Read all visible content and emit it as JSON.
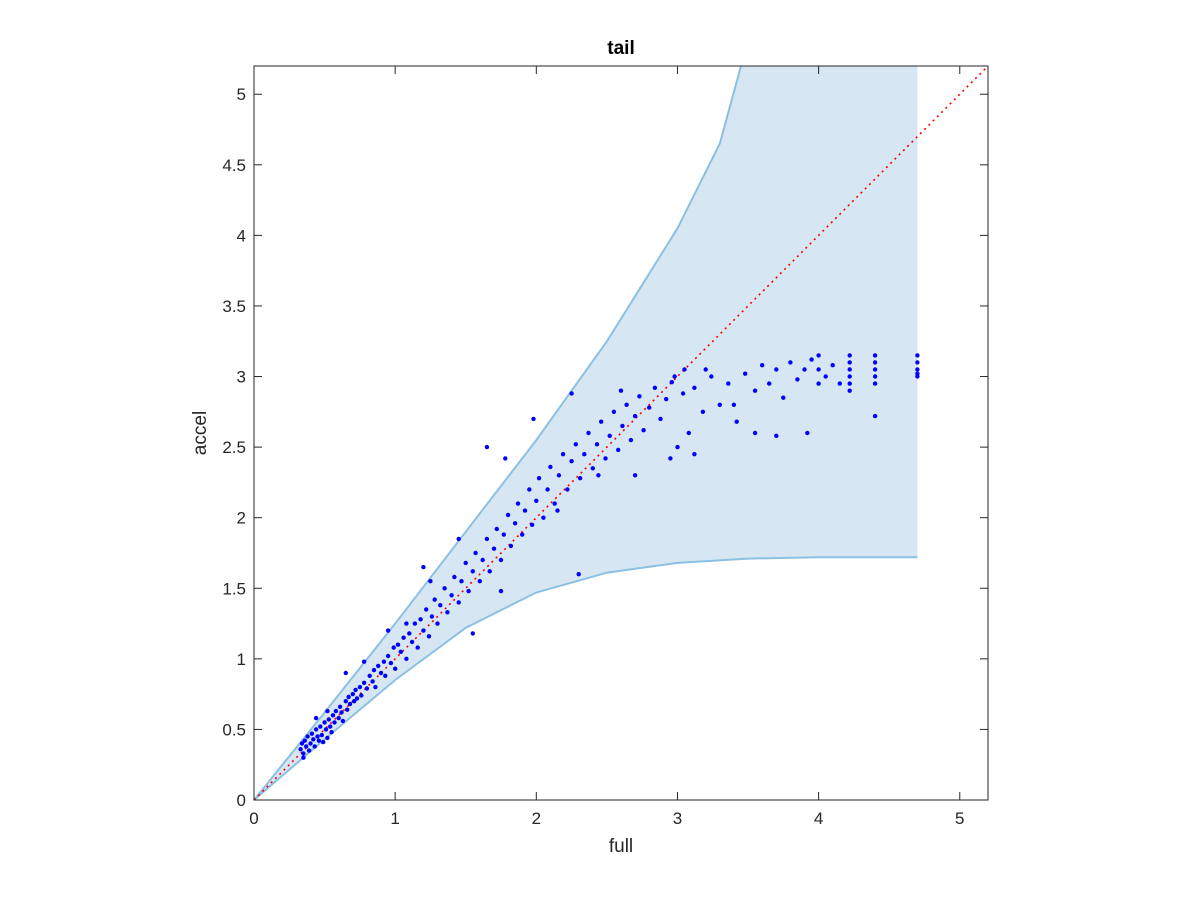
{
  "chart_data": {
    "type": "scatter",
    "title": "tail",
    "xlabel": "full",
    "ylabel": "accel",
    "xlim": [
      0,
      5.2
    ],
    "ylim": [
      0,
      5.2
    ],
    "xticks": [
      0,
      1,
      2,
      3,
      4,
      5
    ],
    "yticks": [
      0,
      0.5,
      1,
      1.5,
      2,
      2.5,
      3,
      3.5,
      4,
      4.5,
      5
    ],
    "grid": false,
    "colors": {
      "points": "#0000ff",
      "band_fill": "#d6e7f3",
      "band_edge": "#8cc0e2",
      "reference": "#ff0000"
    },
    "reference_line": {
      "style": "dotted",
      "from": [
        0,
        0
      ],
      "to": [
        5.2,
        5.2
      ]
    },
    "band": {
      "x_end": 4.7,
      "upper": [
        [
          0,
          0
        ],
        [
          0.5,
          0.62
        ],
        [
          1,
          1.25
        ],
        [
          1.5,
          1.9
        ],
        [
          2,
          2.55
        ],
        [
          2.5,
          3.25
        ],
        [
          3,
          4.05
        ],
        [
          3.3,
          4.65
        ],
        [
          3.45,
          5.2
        ],
        [
          4.7,
          5.2
        ]
      ],
      "lower": [
        [
          0,
          0
        ],
        [
          0.5,
          0.43
        ],
        [
          1,
          0.85
        ],
        [
          1.5,
          1.22
        ],
        [
          2,
          1.47
        ],
        [
          2.5,
          1.61
        ],
        [
          3,
          1.68
        ],
        [
          3.5,
          1.71
        ],
        [
          4,
          1.72
        ],
        [
          4.7,
          1.72
        ]
      ]
    },
    "series": [
      {
        "points": [
          [
            0.33,
            0.36
          ],
          [
            0.34,
            0.4
          ],
          [
            0.35,
            0.33
          ],
          [
            0.36,
            0.42
          ],
          [
            0.37,
            0.38
          ],
          [
            0.38,
            0.45
          ],
          [
            0.39,
            0.35
          ],
          [
            0.4,
            0.4
          ],
          [
            0.41,
            0.47
          ],
          [
            0.42,
            0.43
          ],
          [
            0.43,
            0.38
          ],
          [
            0.44,
            0.5
          ],
          [
            0.45,
            0.45
          ],
          [
            0.46,
            0.42
          ],
          [
            0.47,
            0.52
          ],
          [
            0.48,
            0.46
          ],
          [
            0.49,
            0.41
          ],
          [
            0.5,
            0.55
          ],
          [
            0.51,
            0.5
          ],
          [
            0.52,
            0.44
          ],
          [
            0.53,
            0.57
          ],
          [
            0.54,
            0.52
          ],
          [
            0.55,
            0.48
          ],
          [
            0.56,
            0.6
          ],
          [
            0.57,
            0.55
          ],
          [
            0.58,
            0.63
          ],
          [
            0.6,
            0.58
          ],
          [
            0.61,
            0.66
          ],
          [
            0.62,
            0.62
          ],
          [
            0.63,
            0.56
          ],
          [
            0.65,
            0.7
          ],
          [
            0.66,
            0.64
          ],
          [
            0.67,
            0.73
          ],
          [
            0.68,
            0.68
          ],
          [
            0.7,
            0.75
          ],
          [
            0.71,
            0.7
          ],
          [
            0.72,
            0.78
          ],
          [
            0.73,
            0.72
          ],
          [
            0.75,
            0.8
          ],
          [
            0.76,
            0.74
          ],
          [
            0.78,
            0.83
          ],
          [
            0.8,
            0.79
          ],
          [
            0.82,
            0.88
          ],
          [
            0.84,
            0.84
          ],
          [
            0.85,
            0.92
          ],
          [
            0.86,
            0.8
          ],
          [
            0.88,
            0.95
          ],
          [
            0.9,
            0.9
          ],
          [
            0.92,
            0.98
          ],
          [
            0.93,
            0.88
          ],
          [
            0.95,
            1.02
          ],
          [
            0.97,
            0.97
          ],
          [
            0.99,
            1.08
          ],
          [
            1.0,
            0.93
          ],
          [
            1.02,
            1.1
          ],
          [
            1.04,
            1.05
          ],
          [
            1.06,
            1.15
          ],
          [
            1.08,
            1.0
          ],
          [
            1.1,
            1.18
          ],
          [
            1.12,
            1.12
          ],
          [
            1.14,
            1.25
          ],
          [
            1.16,
            1.08
          ],
          [
            1.18,
            1.28
          ],
          [
            1.2,
            1.2
          ],
          [
            1.22,
            1.35
          ],
          [
            1.24,
            1.16
          ],
          [
            1.26,
            1.3
          ],
          [
            1.28,
            1.42
          ],
          [
            1.3,
            1.25
          ],
          [
            1.32,
            1.38
          ],
          [
            1.35,
            1.5
          ],
          [
            1.37,
            1.33
          ],
          [
            1.4,
            1.45
          ],
          [
            1.42,
            1.58
          ],
          [
            1.45,
            1.4
          ],
          [
            1.47,
            1.55
          ],
          [
            1.5,
            1.68
          ],
          [
            1.52,
            1.48
          ],
          [
            1.55,
            1.62
          ],
          [
            1.57,
            1.75
          ],
          [
            1.6,
            1.55
          ],
          [
            1.62,
            1.7
          ],
          [
            1.65,
            1.85
          ],
          [
            1.67,
            1.62
          ],
          [
            1.7,
            1.78
          ],
          [
            1.72,
            1.92
          ],
          [
            1.75,
            1.7
          ],
          [
            1.77,
            1.88
          ],
          [
            1.8,
            2.02
          ],
          [
            1.82,
            1.8
          ],
          [
            1.85,
            1.96
          ],
          [
            1.87,
            2.1
          ],
          [
            1.9,
            1.88
          ],
          [
            1.92,
            2.05
          ],
          [
            1.95,
            2.2
          ],
          [
            1.97,
            1.95
          ],
          [
            2.0,
            2.12
          ],
          [
            2.02,
            2.28
          ],
          [
            2.05,
            2.0
          ],
          [
            2.08,
            2.2
          ],
          [
            2.1,
            2.36
          ],
          [
            2.13,
            2.1
          ],
          [
            2.16,
            2.3
          ],
          [
            2.19,
            2.45
          ],
          [
            2.22,
            2.2
          ],
          [
            2.25,
            2.4
          ],
          [
            2.28,
            2.52
          ],
          [
            2.31,
            2.28
          ],
          [
            2.34,
            2.45
          ],
          [
            2.37,
            2.6
          ],
          [
            2.4,
            2.35
          ],
          [
            2.43,
            2.52
          ],
          [
            2.46,
            2.68
          ],
          [
            2.49,
            2.42
          ],
          [
            2.52,
            2.58
          ],
          [
            2.55,
            2.75
          ],
          [
            2.58,
            2.48
          ],
          [
            2.61,
            2.65
          ],
          [
            2.64,
            2.8
          ],
          [
            2.67,
            2.55
          ],
          [
            2.7,
            2.72
          ],
          [
            2.73,
            2.86
          ],
          [
            2.76,
            2.62
          ],
          [
            2.8,
            2.78
          ],
          [
            2.84,
            2.92
          ],
          [
            2.88,
            2.7
          ],
          [
            2.92,
            2.84
          ],
          [
            2.96,
            2.96
          ],
          [
            3.0,
            2.5
          ],
          [
            3.04,
            2.88
          ],
          [
            3.08,
            2.6
          ],
          [
            3.12,
            2.92
          ],
          [
            3.18,
            2.75
          ],
          [
            3.24,
            3.0
          ],
          [
            3.3,
            2.8
          ],
          [
            3.36,
            2.95
          ],
          [
            3.42,
            2.68
          ],
          [
            3.48,
            3.02
          ],
          [
            3.55,
            2.9
          ],
          [
            3.6,
            3.08
          ],
          [
            3.65,
            2.95
          ],
          [
            3.7,
            3.05
          ],
          [
            3.75,
            2.85
          ],
          [
            3.8,
            3.1
          ],
          [
            3.85,
            2.98
          ],
          [
            3.9,
            3.05
          ],
          [
            3.95,
            3.12
          ],
          [
            4.0,
            2.95
          ],
          [
            4.0,
            3.05
          ],
          [
            4.0,
            3.15
          ],
          [
            4.05,
            3.0
          ],
          [
            4.1,
            3.08
          ],
          [
            4.15,
            2.95
          ],
          [
            4.22,
            2.9
          ],
          [
            4.22,
            2.95
          ],
          [
            4.22,
            3.0
          ],
          [
            4.22,
            3.05
          ],
          [
            4.22,
            3.1
          ],
          [
            4.22,
            3.15
          ],
          [
            4.4,
            2.95
          ],
          [
            4.4,
            3.0
          ],
          [
            4.4,
            3.05
          ],
          [
            4.4,
            3.1
          ],
          [
            4.4,
            3.15
          ],
          [
            4.4,
            2.72
          ],
          [
            4.7,
            3.0
          ],
          [
            4.7,
            3.05
          ],
          [
            4.7,
            3.1
          ],
          [
            4.7,
            3.15
          ],
          [
            4.7,
            3.02
          ],
          [
            1.65,
            2.5
          ],
          [
            1.78,
            2.42
          ],
          [
            1.98,
            2.7
          ],
          [
            2.25,
            2.88
          ],
          [
            1.55,
            1.18
          ],
          [
            1.75,
            1.48
          ],
          [
            2.3,
            1.6
          ],
          [
            2.7,
            2.3
          ],
          [
            2.98,
            3.0
          ],
          [
            3.05,
            3.05
          ],
          [
            1.25,
            1.55
          ],
          [
            1.2,
            1.65
          ],
          [
            0.65,
            0.9
          ],
          [
            0.78,
            0.98
          ],
          [
            0.52,
            0.63
          ],
          [
            0.44,
            0.58
          ],
          [
            3.12,
            2.45
          ],
          [
            2.95,
            2.42
          ],
          [
            3.7,
            2.58
          ],
          [
            3.92,
            2.6
          ],
          [
            0.35,
            0.3
          ],
          [
            0.95,
            1.2
          ],
          [
            1.08,
            1.25
          ],
          [
            1.45,
            1.85
          ],
          [
            2.15,
            2.05
          ],
          [
            2.44,
            2.3
          ],
          [
            2.6,
            2.9
          ],
          [
            3.2,
            3.05
          ],
          [
            3.55,
            2.6
          ],
          [
            3.4,
            2.8
          ]
        ]
      }
    ]
  }
}
